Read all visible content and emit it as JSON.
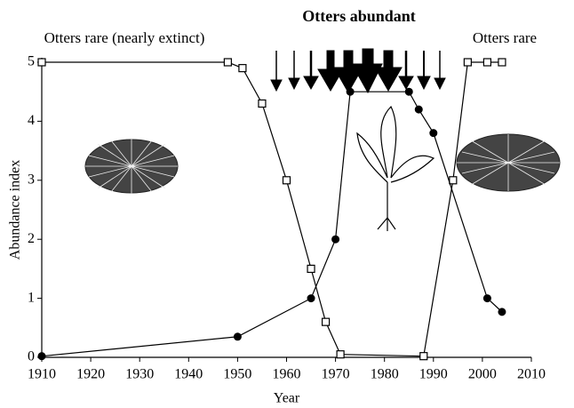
{
  "chart_data": {
    "type": "line",
    "xlabel": "Year",
    "ylabel": "Abundance index",
    "annotations": [
      "Otters rare (nearly extinct)",
      "Otters abundant",
      "Otters rare"
    ],
    "xlim": [
      1910,
      2010
    ],
    "xticks": [
      1910,
      1920,
      1930,
      1940,
      1950,
      1960,
      1970,
      1980,
      1990,
      2000,
      2010
    ],
    "ylim": [
      0,
      5
    ],
    "yticks": [
      0,
      1,
      2,
      3,
      4,
      5
    ],
    "grid": false,
    "series": [
      {
        "color": "#000000",
        "marker": "open-square",
        "x": [
          1910,
          1948,
          1951,
          1955,
          1960,
          1965,
          1968,
          1971,
          1988,
          1994,
          1997,
          2001,
          2004
        ],
        "values": [
          5,
          5,
          4.9,
          4.3,
          3.0,
          1.5,
          0.6,
          0.05,
          0.02,
          3,
          5,
          5,
          5
        ]
      },
      {
        "color": "#000000",
        "marker": "filled-circle",
        "x": [
          1910,
          1950,
          1965,
          1970,
          1973,
          1985,
          1987,
          1990,
          2001,
          2004
        ],
        "values": [
          0.02,
          0.35,
          1.0,
          2.0,
          4.5,
          4.5,
          4.2,
          3.8,
          1.0,
          0.77
        ]
      }
    ]
  }
}
